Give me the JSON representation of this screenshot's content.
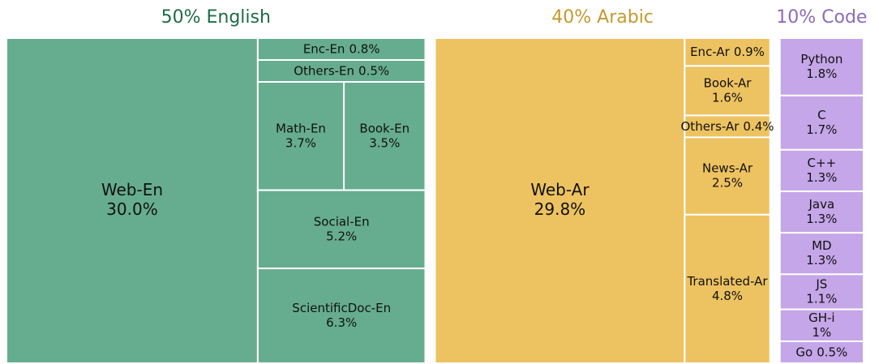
{
  "chart_data": {
    "type": "treemap",
    "groups": [
      {
        "label": "50% English",
        "value": 50,
        "color": "#66ad8f",
        "text_color": "#1f6b4b",
        "leaves": [
          {
            "name": "Web-En",
            "value": 30.0,
            "value_label": "30.0%"
          },
          {
            "name": "Enc-En",
            "value": 0.8,
            "value_label": "0.8%"
          },
          {
            "name": "Others-En",
            "value": 0.5,
            "value_label": "0.5%"
          },
          {
            "name": "Math-En",
            "value": 3.7,
            "value_label": "3.7%"
          },
          {
            "name": "Book-En",
            "value": 3.5,
            "value_label": "3.5%"
          },
          {
            "name": "Social-En",
            "value": 5.2,
            "value_label": "5.2%"
          },
          {
            "name": "ScientificDoc-En",
            "value": 6.3,
            "value_label": "6.3%"
          }
        ]
      },
      {
        "label": "40% Arabic",
        "value": 40,
        "color": "#edc260",
        "text_color": "#c49a2e",
        "leaves": [
          {
            "name": "Web-Ar",
            "value": 29.8,
            "value_label": "29.8%"
          },
          {
            "name": "Enc-Ar",
            "value": 0.9,
            "value_label": "0.9%"
          },
          {
            "name": "Book-Ar",
            "value": 1.6,
            "value_label": "1.6%"
          },
          {
            "name": "Others-Ar",
            "value": 0.4,
            "value_label": "0.4%"
          },
          {
            "name": "News-Ar",
            "value": 2.5,
            "value_label": "2.5%"
          },
          {
            "name": "Translated-Ar",
            "value": 4.8,
            "value_label": "4.8%"
          }
        ]
      },
      {
        "label": "10% Code",
        "value": 10,
        "color": "#c5a6e8",
        "text_color": "#8e6bb8",
        "leaves": [
          {
            "name": "Python",
            "value": 1.8,
            "value_label": "1.8%"
          },
          {
            "name": "C",
            "value": 1.7,
            "value_label": "1.7%"
          },
          {
            "name": "C++",
            "value": 1.3,
            "value_label": "1.3%"
          },
          {
            "name": "Java",
            "value": 1.3,
            "value_label": "1.3%"
          },
          {
            "name": "MD",
            "value": 1.3,
            "value_label": "1.3%"
          },
          {
            "name": "JS",
            "value": 1.1,
            "value_label": "1.1%"
          },
          {
            "name": "GH-i",
            "value": 1,
            "value_label": "1%"
          },
          {
            "name": "Go",
            "value": 0.5,
            "value_label": "0.5%"
          }
        ]
      }
    ]
  }
}
